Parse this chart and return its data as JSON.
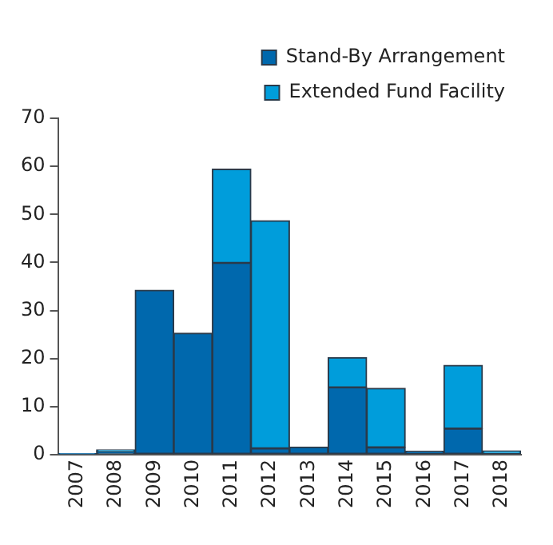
{
  "chart_data": {
    "type": "bar",
    "stacked": true,
    "legend": "top right",
    "grid": false,
    "categories": [
      "2007",
      "2008",
      "2009",
      "2010",
      "2011",
      "2012",
      "2013",
      "2014",
      "2015",
      "2016",
      "2017",
      "2018"
    ],
    "series": [
      {
        "name": "Stand-By Arrangement",
        "color": "#0068ad",
        "values": [
          0.2,
          0.6,
          34.2,
          25.3,
          39.9,
          1.3,
          1.6,
          14,
          1.5,
          0.7,
          5.4,
          0
        ]
      },
      {
        "name": "Extended Fund Facility",
        "color": "#009ddb",
        "values": [
          0,
          0.4,
          0,
          0,
          19.5,
          47.4,
          0,
          6.2,
          12.3,
          0,
          13.2,
          0.8
        ]
      }
    ],
    "ylim": [
      0,
      70
    ],
    "yticks": [
      0,
      10,
      20,
      30,
      40,
      50,
      60,
      70
    ]
  }
}
